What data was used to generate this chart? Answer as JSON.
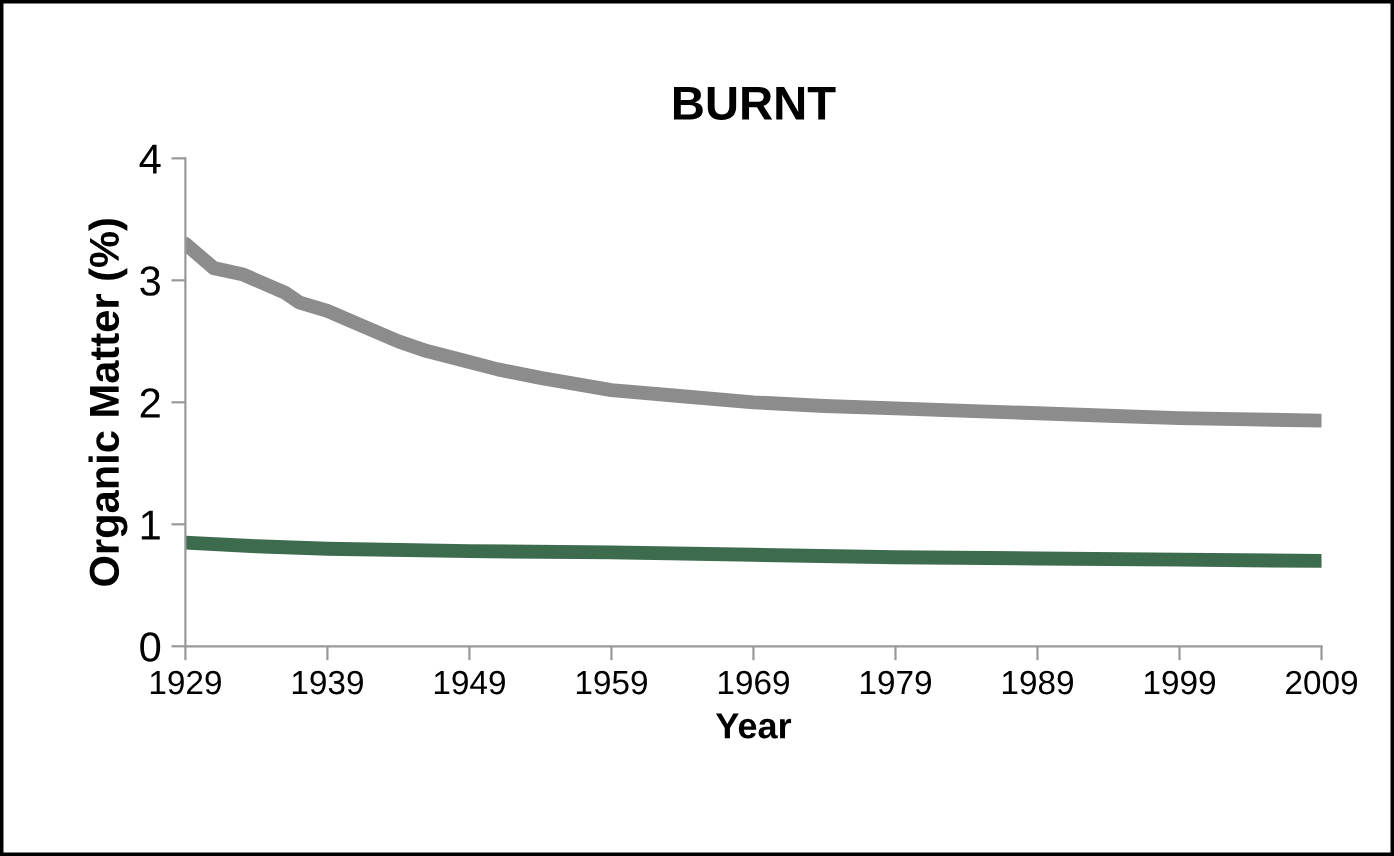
{
  "chart_data": {
    "type": "line",
    "title": "BURNT",
    "xlabel": "Year",
    "ylabel": "Organic Matter (%)",
    "xlim": [
      1929,
      2009
    ],
    "xticks": [
      1929,
      1939,
      1949,
      1959,
      1969,
      1979,
      1989,
      1999,
      2009
    ],
    "ylim": [
      0,
      4
    ],
    "yticks": [
      0,
      1,
      2,
      3,
      4
    ],
    "grid": false,
    "legend": false,
    "marker": "none",
    "line_style": "solid",
    "series": [
      {
        "color": "#8c8c8c",
        "x": [
          1929,
          1930,
          1931,
          1933,
          1934,
          1936,
          1937,
          1939,
          1941,
          1944,
          1946,
          1949,
          1951,
          1954,
          1959,
          1964,
          1969,
          1974,
          1979,
          1984,
          1989,
          1994,
          1999,
          2004,
          2009
        ],
        "values": [
          3.3,
          3.2,
          3.1,
          3.05,
          3.0,
          2.9,
          2.82,
          2.75,
          2.65,
          2.5,
          2.42,
          2.33,
          2.27,
          2.2,
          2.1,
          2.05,
          2.0,
          1.97,
          1.95,
          1.93,
          1.91,
          1.89,
          1.87,
          1.86,
          1.85
        ]
      },
      {
        "color": "#3d6b4e",
        "x": [
          1929,
          1934,
          1939,
          1949,
          1959,
          1969,
          1979,
          1989,
          1999,
          2009
        ],
        "values": [
          0.85,
          0.82,
          0.8,
          0.78,
          0.77,
          0.75,
          0.73,
          0.72,
          0.71,
          0.7
        ]
      }
    ]
  }
}
